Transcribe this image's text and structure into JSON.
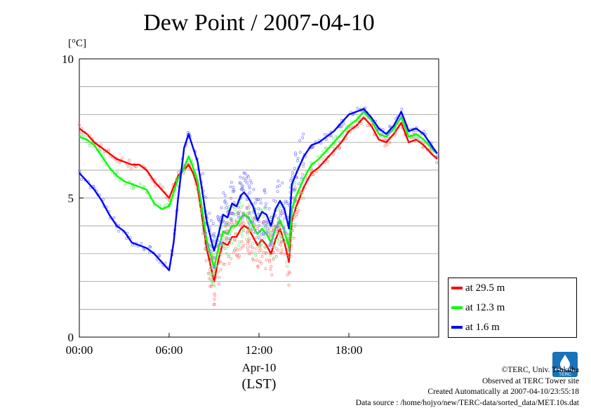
{
  "chart_data": {
    "type": "line",
    "title": "Dew Point / 2007-04-10",
    "ylabel": "[°C]",
    "ylim": [
      0,
      10
    ],
    "yticks": [
      0,
      5,
      10
    ],
    "xlim": [
      0,
      24
    ],
    "xticks": [
      {
        "v": 0,
        "label": "00:00"
      },
      {
        "v": 6,
        "label": "06:00"
      },
      {
        "v": 12,
        "label": "12:00"
      },
      {
        "v": 18,
        "label": "18:00"
      }
    ],
    "xlabel_date": "Apr-10",
    "xlabel_tz": "(LST)",
    "grid": true,
    "legend_position": "bottom-right outside",
    "series": [
      {
        "name": "at 29.5 m",
        "color": "#ff0000",
        "x": [
          0,
          0.5,
          1,
          1.5,
          2,
          2.5,
          3,
          3.5,
          4,
          4.5,
          5,
          5.5,
          6,
          6.3,
          6.6,
          7,
          7.3,
          7.6,
          7.9,
          8.2,
          8.5,
          8.8,
          9,
          9.3,
          9.6,
          9.9,
          10.2,
          10.5,
          10.8,
          11,
          11.3,
          11.6,
          11.9,
          12.2,
          12.5,
          12.8,
          13.1,
          13.4,
          13.7,
          14,
          14.2,
          14.5,
          15,
          15.5,
          16,
          16.5,
          17,
          17.5,
          18,
          18.5,
          19,
          19.5,
          20,
          20.5,
          21,
          21.5,
          22,
          22.5,
          23,
          23.5,
          23.9
        ],
        "y": [
          7.5,
          7.3,
          7.0,
          6.8,
          6.6,
          6.4,
          6.3,
          6.2,
          6.2,
          6.0,
          5.6,
          5.3,
          5.0,
          5.4,
          5.8,
          6.0,
          6.2,
          5.9,
          5.4,
          4.3,
          3.2,
          2.5,
          2.0,
          2.8,
          3.4,
          3.3,
          3.6,
          3.6,
          3.9,
          4.0,
          3.9,
          3.6,
          3.3,
          3.5,
          3.3,
          3.0,
          3.5,
          3.9,
          3.4,
          2.7,
          4.2,
          4.7,
          5.4,
          5.9,
          6.1,
          6.4,
          6.7,
          7.0,
          7.4,
          7.6,
          7.9,
          7.6,
          7.1,
          7.0,
          7.3,
          7.7,
          7.0,
          7.1,
          6.9,
          6.6,
          6.4
        ]
      },
      {
        "name": "at 12.3 m",
        "color": "#00ff00",
        "x": [
          0,
          0.5,
          1,
          1.5,
          2,
          2.5,
          3,
          3.5,
          4,
          4.5,
          5,
          5.5,
          6,
          6.3,
          6.6,
          7,
          7.3,
          7.6,
          7.9,
          8.2,
          8.5,
          8.8,
          9,
          9.3,
          9.6,
          9.9,
          10.2,
          10.5,
          10.8,
          11,
          11.3,
          11.6,
          11.9,
          12.2,
          12.5,
          12.8,
          13.1,
          13.4,
          13.7,
          14,
          14.2,
          14.5,
          15,
          15.5,
          16,
          16.5,
          17,
          17.5,
          18,
          18.5,
          19,
          19.5,
          20,
          20.5,
          21,
          21.5,
          22,
          22.5,
          23,
          23.5,
          23.9
        ],
        "y": [
          7.2,
          7.1,
          6.9,
          6.5,
          6.1,
          5.8,
          5.6,
          5.5,
          5.4,
          5.3,
          4.8,
          4.6,
          4.7,
          5.2,
          5.7,
          6.1,
          6.5,
          6.1,
          5.6,
          4.6,
          3.5,
          2.9,
          2.5,
          3.2,
          3.8,
          3.7,
          4.0,
          4.0,
          4.3,
          4.4,
          4.3,
          4.0,
          3.7,
          3.9,
          3.7,
          3.4,
          3.9,
          4.2,
          3.8,
          3.2,
          4.6,
          5.1,
          5.7,
          6.2,
          6.4,
          6.7,
          7.0,
          7.3,
          7.6,
          7.8,
          8.1,
          7.8,
          7.3,
          7.2,
          7.5,
          7.9,
          7.2,
          7.3,
          7.1,
          6.8,
          6.6
        ]
      },
      {
        "name": "at 1.6 m",
        "color": "#0000ff",
        "x": [
          0,
          0.5,
          1,
          1.5,
          2,
          2.5,
          3,
          3.5,
          4,
          4.5,
          5,
          5.5,
          6,
          6.3,
          6.6,
          7,
          7.3,
          7.6,
          7.9,
          8.2,
          8.5,
          8.8,
          9,
          9.3,
          9.6,
          9.9,
          10.2,
          10.5,
          10.8,
          11,
          11.3,
          11.6,
          11.9,
          12.2,
          12.5,
          12.8,
          13.1,
          13.4,
          13.7,
          14,
          14.2,
          14.5,
          15,
          15.5,
          16,
          16.5,
          17,
          17.5,
          18,
          18.5,
          19,
          19.5,
          20,
          20.5,
          21,
          21.5,
          22,
          22.5,
          23,
          23.5,
          23.9
        ],
        "y": [
          5.9,
          5.6,
          5.3,
          4.9,
          4.4,
          4.0,
          3.8,
          3.4,
          3.3,
          3.2,
          3.0,
          2.7,
          2.4,
          3.4,
          5.0,
          6.8,
          7.3,
          6.8,
          6.3,
          5.3,
          4.2,
          3.5,
          3.1,
          3.7,
          4.4,
          4.3,
          4.8,
          4.7,
          5.1,
          5.2,
          5.0,
          4.7,
          4.2,
          4.5,
          4.4,
          4.0,
          4.6,
          4.9,
          4.6,
          3.9,
          5.5,
          5.9,
          6.5,
          6.9,
          7.0,
          7.2,
          7.4,
          7.7,
          8.0,
          8.1,
          8.2,
          7.9,
          7.5,
          7.3,
          7.6,
          8.1,
          7.4,
          7.5,
          7.3,
          6.9,
          6.6
        ]
      }
    ]
  },
  "legend": [
    {
      "label": "at 29.5 m",
      "color": "#ff0000"
    },
    {
      "label": "at 12.3 m",
      "color": "#00ff00"
    },
    {
      "label": "at 1.6 m",
      "color": "#0000ff"
    }
  ],
  "credits": {
    "copyright": "©TERC, Univ. Tsukuba",
    "observed": "Observed at TERC Tower site",
    "created": "Created Automatically at 2007-04-10/23:55:18",
    "source": "Data source : /home/hojyo/new/TERC-data/sorted_data/MET.10s.dat"
  },
  "logo_text": "TERC"
}
